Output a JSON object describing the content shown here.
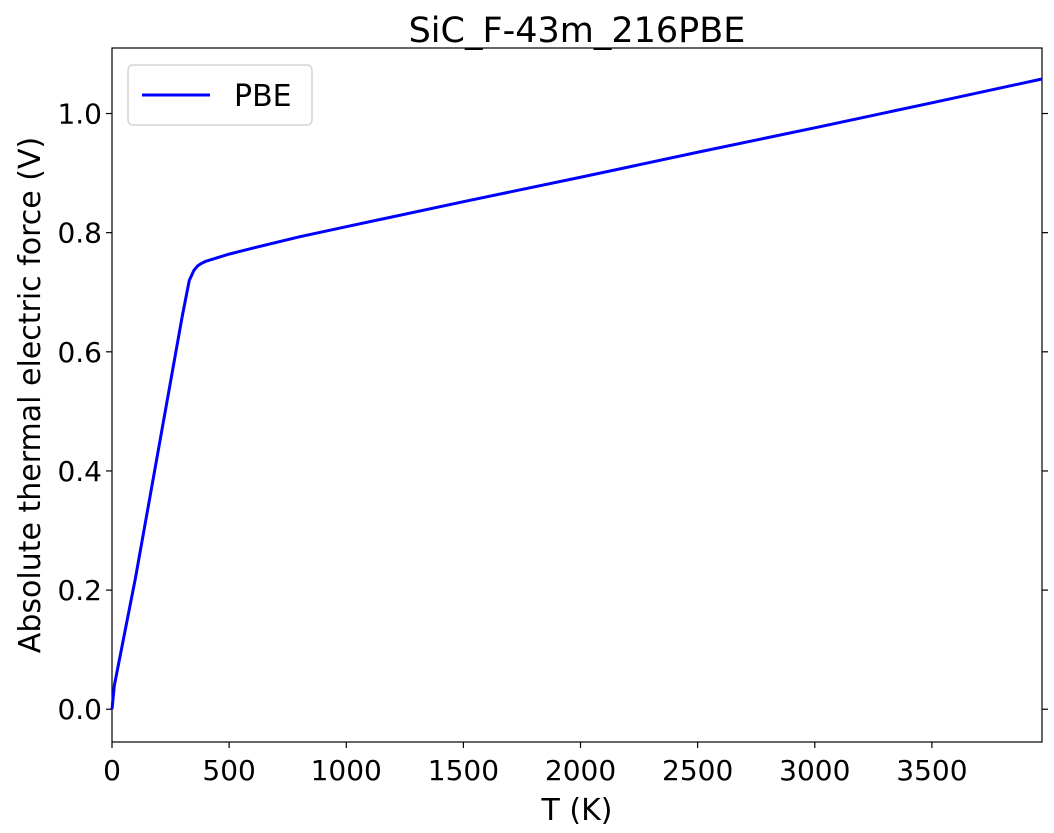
{
  "chart_data": {
    "type": "line",
    "title": "SiC_F-43m_216PBE",
    "xlabel": "T (K)",
    "ylabel": "Absolute thermal electric force (V)",
    "xlim": [
      0,
      3970
    ],
    "ylim": [
      -0.055,
      1.11
    ],
    "xticks": [
      0,
      500,
      1000,
      1500,
      2000,
      2500,
      3000,
      3500
    ],
    "yticks": [
      0.0,
      0.2,
      0.4,
      0.6,
      0.8,
      1.0
    ],
    "xtick_labels": [
      "0",
      "500",
      "1000",
      "1500",
      "2000",
      "2500",
      "3000",
      "3500"
    ],
    "ytick_labels": [
      "0.0",
      "0.2",
      "0.4",
      "0.6",
      "0.8",
      "1.0"
    ],
    "grid": false,
    "legend": {
      "placement": "top-left",
      "entries": [
        "PBE"
      ]
    },
    "series": [
      {
        "name": "PBE",
        "color": "#0000ff",
        "x": [
          0,
          10,
          25,
          50,
          75,
          100,
          150,
          200,
          250,
          300,
          330,
          350,
          365,
          380,
          400,
          450,
          500,
          600,
          800,
          1000,
          1500,
          2000,
          2500,
          3000,
          3500,
          3970
        ],
        "y": [
          0.0,
          0.04,
          0.07,
          0.12,
          0.17,
          0.22,
          0.33,
          0.44,
          0.55,
          0.66,
          0.72,
          0.737,
          0.744,
          0.748,
          0.752,
          0.758,
          0.764,
          0.774,
          0.793,
          0.81,
          0.852,
          0.893,
          0.935,
          0.976,
          1.018,
          1.058
        ]
      }
    ]
  }
}
